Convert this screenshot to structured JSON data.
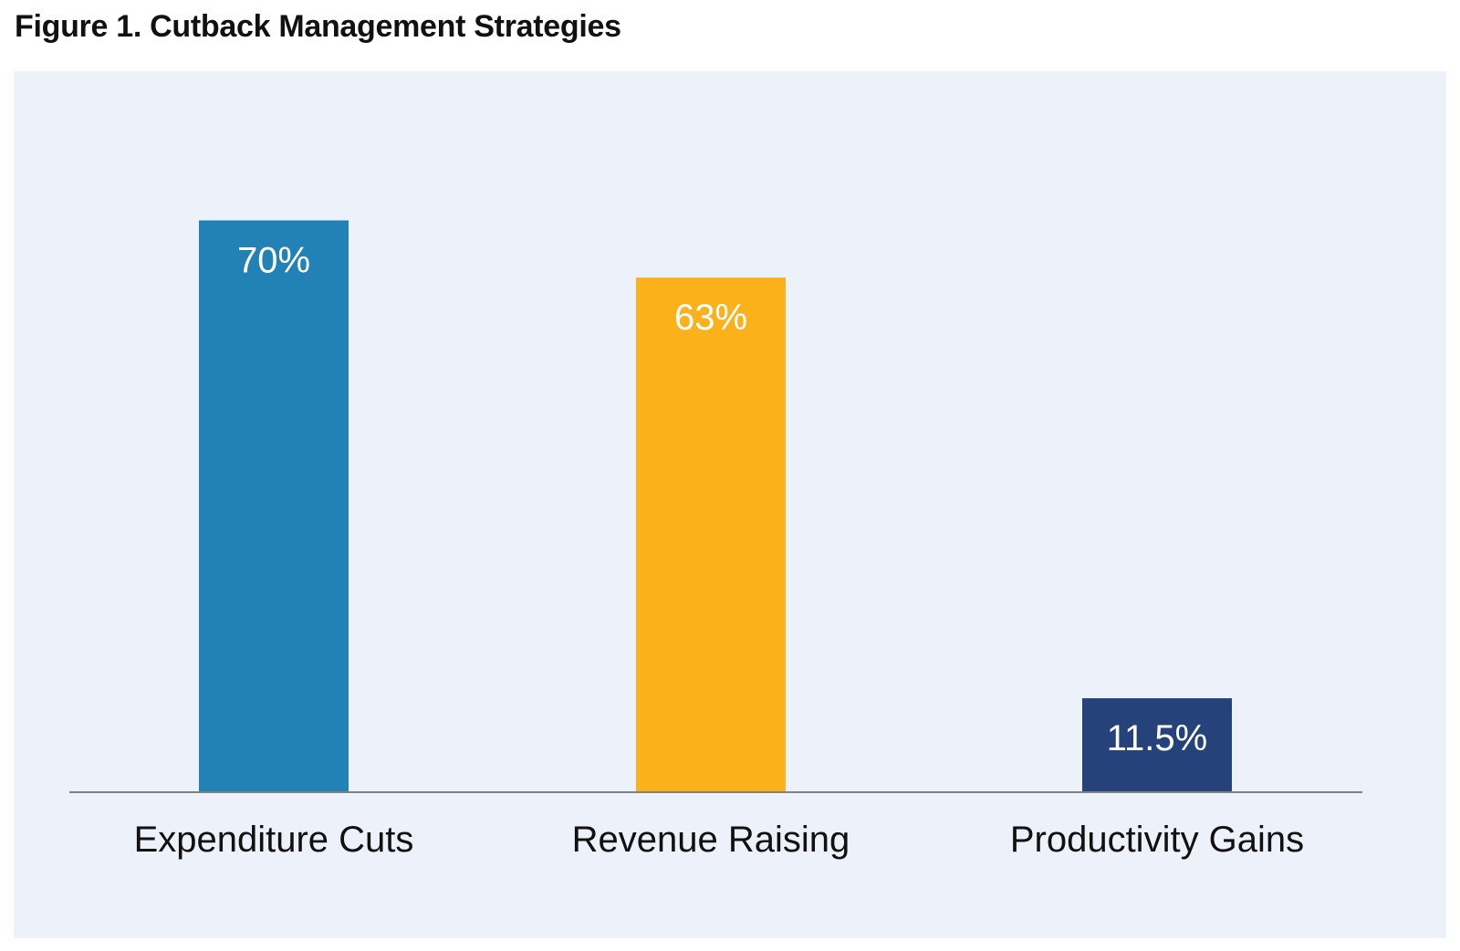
{
  "figure": {
    "title": "Figure 1. Cutback Management Strategies"
  },
  "colors": {
    "panel_background": "#edf1f9",
    "axis": "#808080"
  },
  "chart_data": {
    "type": "bar",
    "title": "",
    "xlabel": "",
    "ylabel": "",
    "ylim": [
      0,
      100
    ],
    "grid": false,
    "categories": [
      "Expenditure Cuts",
      "Revenue Raising",
      "Productivity Gains"
    ],
    "values": [
      70,
      63,
      11.5
    ],
    "data_labels": [
      "70%",
      "63%",
      "11.5%"
    ],
    "colors": [
      "#2282b5",
      "#fbb11a",
      "#26427b"
    ]
  }
}
